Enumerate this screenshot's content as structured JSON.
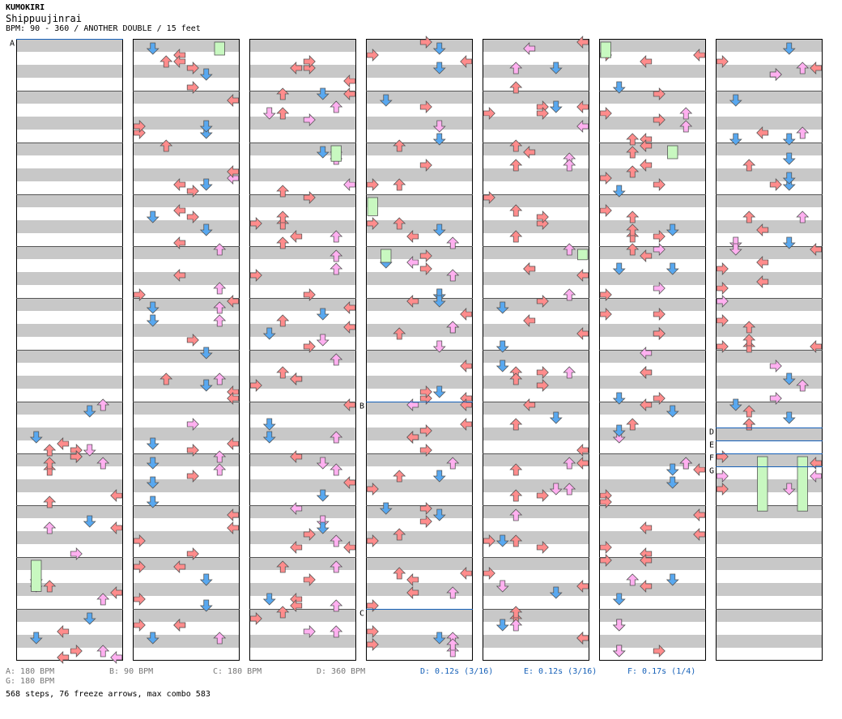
{
  "header": {
    "title": "KUMOKIRI",
    "subtitle": "Shippuujinrai",
    "info": "BPM: 90 - 360 / ANOTHER DOUBLE / 15 feet"
  },
  "colors": {
    "red_arrow": "#ff8c8c",
    "blue_arrow": "#58a8f0",
    "pink_arrow": "#ffb0f0",
    "green_arrow": "#70e070",
    "freeze_body": "#c8f8c0",
    "stripe": "#c8c8c8",
    "marker_line": "#1560b8"
  },
  "legend_row1": [
    {
      "id": "A",
      "text": "A: 180 BPM"
    },
    {
      "id": "B",
      "text": "B: 90 BPM"
    },
    {
      "id": "C",
      "text": "C: 180 BPM"
    },
    {
      "id": "D_bpm",
      "text": "D: 360 BPM"
    },
    {
      "id": "D_stop",
      "text": "D: 0.12s (3/16)"
    },
    {
      "id": "E_stop",
      "text": "E: 0.12s (3/16)"
    },
    {
      "id": "F_stop",
      "text": "F: 0.17s (1/4)"
    }
  ],
  "legend_row2": [
    {
      "id": "G",
      "text": "G: 180 BPM"
    }
  ],
  "summary": "568 steps, 76 freeze arrows, max combo 583",
  "chart_data": {
    "type": "step-chart",
    "title": "KUMOKIRI",
    "song": "Shippuujinrai",
    "difficulty": "ANOTHER DOUBLE",
    "level": "15 feet",
    "bpm_range": [
      90,
      360
    ],
    "columns": 7,
    "measures_per_column": 12,
    "markers": [
      {
        "label": "A",
        "column": 1,
        "measure": 1,
        "beat": 0,
        "bpm": 180
      },
      {
        "label": "B",
        "column": 4,
        "measure": 8,
        "beat": 0,
        "bpm": 90
      },
      {
        "label": "C",
        "column": 4,
        "measure": 12,
        "beat": 0,
        "bpm": 180
      },
      {
        "label": "D",
        "column": 7,
        "measure": 8,
        "beat": 2,
        "bpm": 360,
        "stop_s": 0.12
      },
      {
        "label": "E",
        "column": 7,
        "measure": 8,
        "beat": 3,
        "stop_s": 0.12
      },
      {
        "label": "F",
        "column": 7,
        "measure": 9,
        "beat": 0,
        "stop_s": 0.17
      },
      {
        "label": "G",
        "column": 7,
        "measure": 9,
        "beat": 1,
        "bpm": 180
      }
    ],
    "steps": 568,
    "freeze_arrows": 76,
    "max_combo": 583
  }
}
